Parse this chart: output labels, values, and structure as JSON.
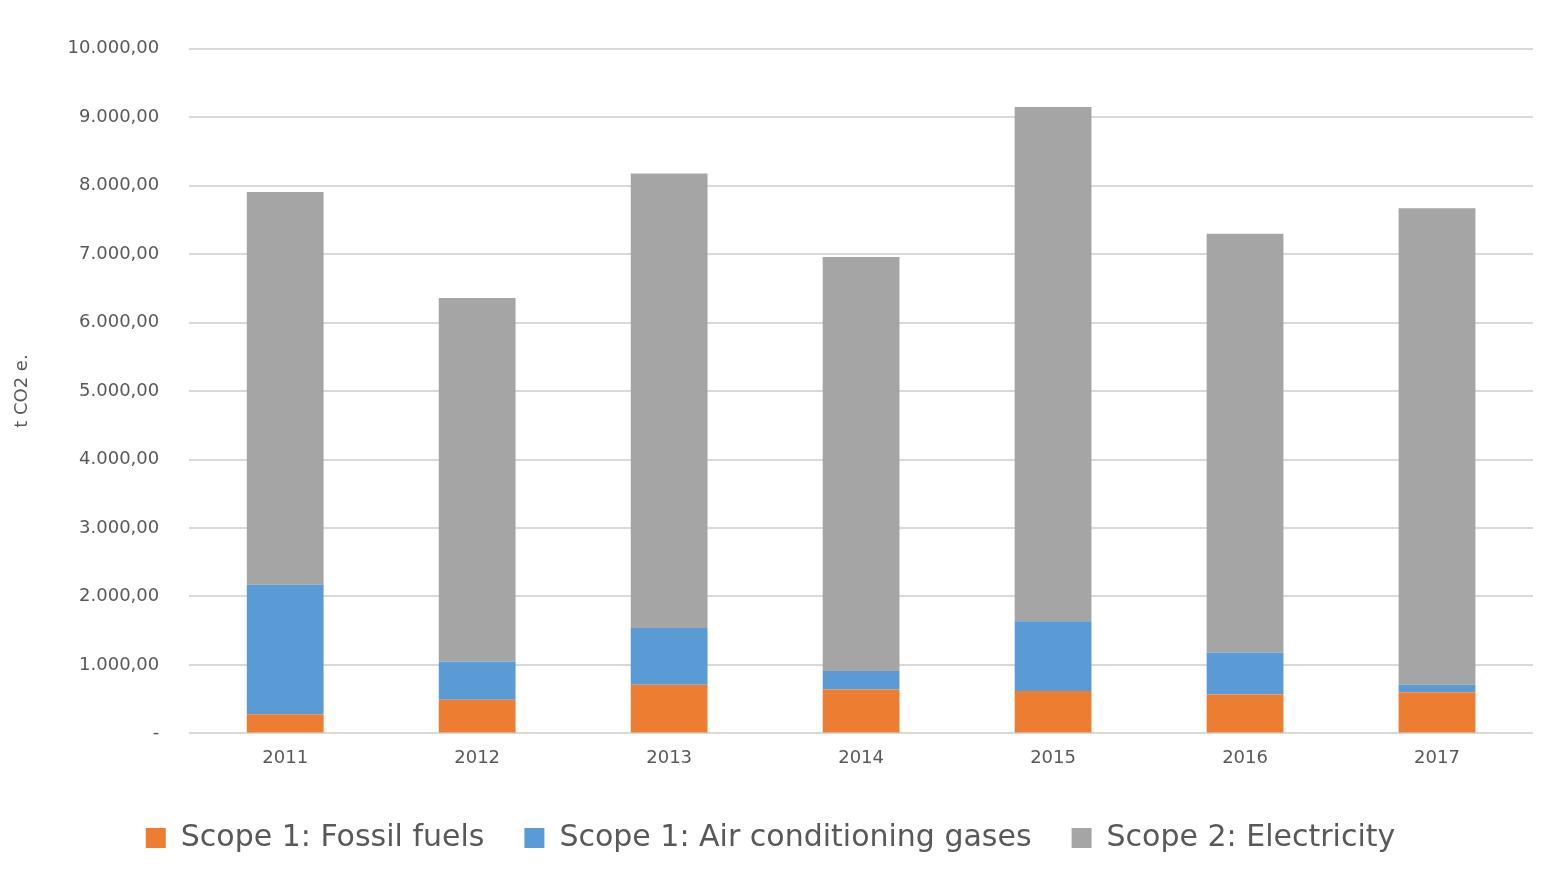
{
  "chart_data": {
    "type": "bar",
    "stacked": true,
    "ylabel": "t CO2 e.",
    "categories": [
      "2011",
      "2012",
      "2013",
      "2014",
      "2015",
      "2016",
      "2017"
    ],
    "series": [
      {
        "name": "Scope 1: Fossil fuels",
        "color": "#ed7d31",
        "values": [
          280,
          490,
          710,
          640,
          620,
          570,
          600
        ]
      },
      {
        "name": "Scope 1: Air conditioning gases",
        "color": "#5b9bd5",
        "values": [
          1890,
          560,
          830,
          270,
          1020,
          610,
          110
        ]
      },
      {
        "name": "Scope 2: Electricity",
        "color": "#a5a5a5",
        "values": [
          5740,
          5310,
          6640,
          6050,
          7510,
          6120,
          6960
        ]
      }
    ],
    "ylim": [
      0,
      10000
    ],
    "yticks": [
      {
        "value": 0,
        "label": "-"
      },
      {
        "value": 1000,
        "label": "1.000,00"
      },
      {
        "value": 2000,
        "label": "2.000,00"
      },
      {
        "value": 3000,
        "label": "3.000,00"
      },
      {
        "value": 4000,
        "label": "4.000,00"
      },
      {
        "value": 5000,
        "label": "5.000,00"
      },
      {
        "value": 6000,
        "label": "6.000,00"
      },
      {
        "value": 7000,
        "label": "7.000,00"
      },
      {
        "value": 8000,
        "label": "8.000,00"
      },
      {
        "value": 9000,
        "label": "9.000,00"
      },
      {
        "value": 10000,
        "label": "10.000,00"
      }
    ],
    "grid": "y",
    "legend": "bottom"
  }
}
